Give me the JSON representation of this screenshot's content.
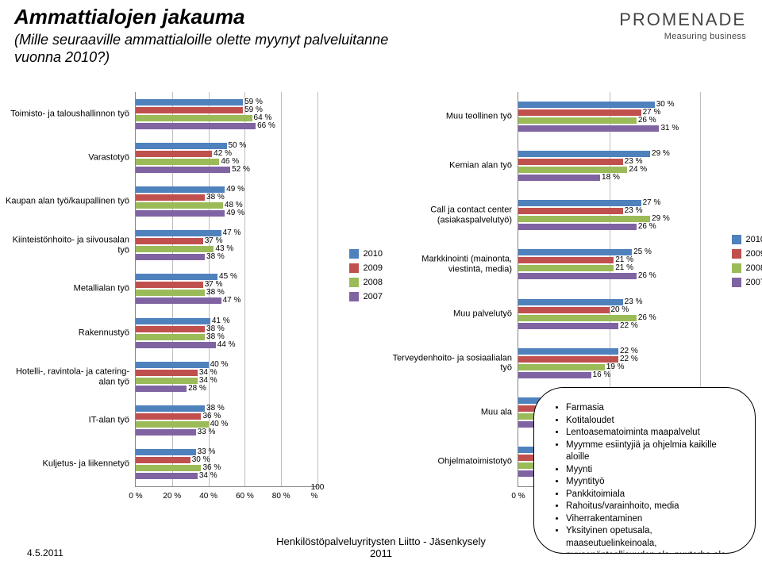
{
  "title": "Ammattialojen jakauma",
  "subtitle": "(Mille seuraaville ammattialoille olette myynyt palveluitanne vuonna 2010?)",
  "logo_brand": "PROMENADE",
  "logo_tag": "Measuring business",
  "series_colors": {
    "2010": "#4f81bd",
    "2009": "#c0504d",
    "2008": "#9bbb59",
    "2007": "#8064a2"
  },
  "series_labels": [
    "2010",
    "2009",
    "2008",
    "2007"
  ],
  "left_chart": {
    "xaxis_max": 100,
    "xaxis_step": 20,
    "xaxis_format_pct": true,
    "categories": [
      {
        "label": "Toimisto- ja taloushallinnon työ",
        "values": {
          "2010": 59,
          "2009": 59,
          "2008": 64,
          "2007": 66
        }
      },
      {
        "label": "Varastotyö",
        "values": {
          "2010": 50,
          "2009": 42,
          "2008": 46,
          "2007": 52
        }
      },
      {
        "label": "Kaupan alan työ/kaupallinen työ",
        "values": {
          "2010": 49,
          "2009": 38,
          "2008": 48,
          "2007": 49
        }
      },
      {
        "label": "Kiinteistönhoito- ja siivousalan työ",
        "values": {
          "2010": 47,
          "2009": 37,
          "2008": 43,
          "2007": 38
        }
      },
      {
        "label": "Metallialan työ",
        "values": {
          "2010": 45,
          "2009": 37,
          "2008": 38,
          "2007": 47
        }
      },
      {
        "label": "Rakennustyö",
        "values": {
          "2010": 41,
          "2009": 38,
          "2008": 38,
          "2007": 44
        }
      },
      {
        "label": "Hotelli-, ravintola- ja catering- alan työ",
        "values": {
          "2010": 40,
          "2009": 34,
          "2008": 34,
          "2007": 28
        }
      },
      {
        "label": "IT-alan työ",
        "values": {
          "2010": 38,
          "2009": 36,
          "2008": 40,
          "2007": 33
        }
      },
      {
        "label": "Kuljetus- ja liikennetyö",
        "values": {
          "2010": 33,
          "2009": 30,
          "2008": 36,
          "2007": 34
        }
      }
    ]
  },
  "right_chart": {
    "xaxis_max": 40,
    "xaxis_step": 20,
    "xaxis_format_pct": true,
    "categories": [
      {
        "label": "Muu teollinen työ",
        "values": {
          "2010": 30,
          "2009": 27,
          "2008": 26,
          "2007": 31
        }
      },
      {
        "label": "Kemian alan työ",
        "values": {
          "2010": 29,
          "2009": 23,
          "2008": 24,
          "2007": 18
        }
      },
      {
        "label": "Call ja contact center (asiakaspalvelutyö)",
        "values": {
          "2010": 27,
          "2009": 23,
          "2008": 29,
          "2007": 26
        }
      },
      {
        "label": "Markkinointi (mainonta, viestintä, media)",
        "values": {
          "2010": 25,
          "2009": 21,
          "2008": 21,
          "2007": 26
        }
      },
      {
        "label": "Muu palvelutyö",
        "values": {
          "2010": 23,
          "2009": 20,
          "2008": 26,
          "2007": 22
        }
      },
      {
        "label": "Terveydenhoito- ja sosiaalialan työ",
        "values": {
          "2010": 22,
          "2009": 22,
          "2008": 19,
          "2007": 16
        }
      },
      {
        "label": "Muu ala",
        "values": {
          "2010": 9,
          "2009": 13,
          "2008": 10,
          "2007": 13
        }
      },
      {
        "label": "Ohjelmatoimistotyö",
        "values": {
          "2010": 9,
          "2009": 8,
          "2008": 8,
          "2007": 8
        }
      }
    ]
  },
  "callout_items": [
    "Farmasia",
    "Kotitaloudet",
    "Lentoasematoiminta maapalvelut",
    "Myymme esiintyjiä ja ohjelmia kaikille aloille",
    "Myynti",
    "Myyntityö",
    "Pankkitoimiala",
    "Rahoitus/varainhoito, media",
    "Viherrakentaminen",
    "Yksityinen opetusala, maaseutuelinkeinoala, puusepänteollisuuden ala, puutarha-ala, viherala, golfala"
  ],
  "footer_date": "4.5.2011",
  "footer_mid": "Henkilöstöpalveluyritysten Liitto - Jäsenkysely\n2011"
}
